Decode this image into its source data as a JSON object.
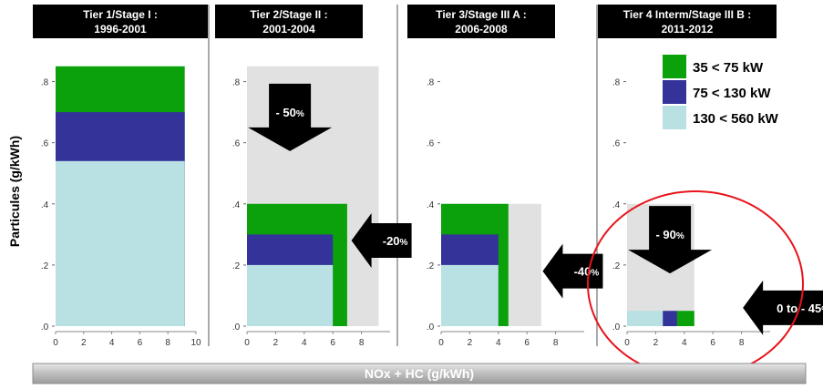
{
  "colors": {
    "green": "#0aa10a",
    "blue": "#333399",
    "lightblue": "#b9e1e4",
    "gray": "#e1e1e1",
    "black": "#000000",
    "red": "#e8141b"
  },
  "ylabel": "Particules (g/kWh)",
  "xlabel": "NOx + HC (g/kWh)",
  "legend": [
    {
      "label": "35 < 75 kW",
      "color": "#0aa10a"
    },
    {
      "label": "75 < 130 kW",
      "color": "#333399"
    },
    {
      "label": "130 < 560 kW",
      "color": "#b9e1e4"
    }
  ],
  "y_tick_labels": [
    ".0",
    ".2",
    ".4",
    ".6",
    ".8"
  ],
  "chart_data": [
    {
      "type": "bar",
      "title_line1": "Tier 1/Stage I :",
      "title_line2": "1996-2001",
      "xlim": [
        0,
        10
      ],
      "ylim": [
        0,
        0.9
      ],
      "x_ticks": [
        0,
        2,
        4,
        6,
        8,
        10
      ],
      "y_ticks": [
        0,
        0.2,
        0.4,
        0.6,
        0.8
      ],
      "previous_limit": null,
      "series": [
        {
          "name": "130 < 560 kW",
          "nox_hc": 9.2,
          "pm": 0.54
        },
        {
          "name": "75 < 130 kW",
          "nox_hc": 9.2,
          "pm": 0.7
        },
        {
          "name": "35 < 75 kW",
          "nox_hc": 9.2,
          "pm": 0.85
        }
      ]
    },
    {
      "type": "bar",
      "title_line1": "Tier 2/Stage II :",
      "title_line2": "2001-2004",
      "xlim": [
        0,
        10
      ],
      "ylim": [
        0,
        0.9
      ],
      "x_ticks": [
        0,
        2,
        4,
        6,
        8
      ],
      "y_ticks": [
        0,
        0.2,
        0.4,
        0.6,
        0.8
      ],
      "previous_limit": {
        "nox_hc": 9.2,
        "pm": 0.85
      },
      "series": [
        {
          "name": "130 < 560 kW",
          "nox_hc": 6.0,
          "pm": 0.2
        },
        {
          "name": "75 < 130 kW",
          "nox_hc": 6.0,
          "pm": 0.3
        },
        {
          "name": "35 < 75 kW",
          "nox_hc": 7.0,
          "pm": 0.4
        }
      ],
      "arrows": [
        {
          "label": "- 50",
          "pct": "%",
          "dir": "down",
          "x": 3.0,
          "y": 0.65
        },
        {
          "label": "-20",
          "pct": "%",
          "dir": "left",
          "x": 8.7,
          "y": 0.28
        }
      ]
    },
    {
      "type": "bar",
      "title_line1": "Tier 3/Stage III A :",
      "title_line2": "2006-2008",
      "xlim": [
        0,
        10
      ],
      "ylim": [
        0,
        0.9
      ],
      "x_ticks": [
        0,
        2,
        4,
        6,
        8
      ],
      "y_ticks": [
        0,
        0.2,
        0.4,
        0.6,
        0.8
      ],
      "previous_limit": {
        "nox_hc": 7.0,
        "pm": 0.4
      },
      "series": [
        {
          "name": "130 < 560 kW",
          "nox_hc": 4.0,
          "pm": 0.2
        },
        {
          "name": "75 < 130 kW",
          "nox_hc": 4.0,
          "pm": 0.3
        },
        {
          "name": "35 < 75 kW",
          "nox_hc": 4.7,
          "pm": 0.4
        }
      ],
      "arrows": [
        {
          "label": "-40",
          "pct": "%",
          "dir": "left",
          "x": 8.5,
          "y": 0.18
        }
      ]
    },
    {
      "type": "bar",
      "title_line1": "Tier 4 Interm/Stage III B :",
      "title_line2": "2011-2012",
      "xlim": [
        0,
        10
      ],
      "ylim": [
        0,
        0.9
      ],
      "x_ticks": [
        0,
        2,
        4,
        6,
        8
      ],
      "y_ticks": [
        0,
        0.2,
        0.4,
        0.6,
        0.8
      ],
      "previous_limit": {
        "nox_hc": 4.7,
        "pm": 0.4
      },
      "steps": [
        {
          "name": "130 < 560 kW",
          "x0": 0,
          "x1": 2.5,
          "pm": 0.025
        },
        {
          "name": "75 < 130 kW",
          "x0": 2.5,
          "x1": 3.5,
          "pm": 0.025
        },
        {
          "name": "35 < 75 kW",
          "x0": 3.5,
          "x1": 4.7,
          "pm": 0.025
        }
      ],
      "arrows": [
        {
          "label": "- 90",
          "pct": "%",
          "dir": "down",
          "x": 3.0,
          "y": 0.25
        },
        {
          "label": "0 to - 45",
          "pct": "%",
          "dir": "left",
          "x": 9.5,
          "y": 0.06
        }
      ]
    }
  ]
}
